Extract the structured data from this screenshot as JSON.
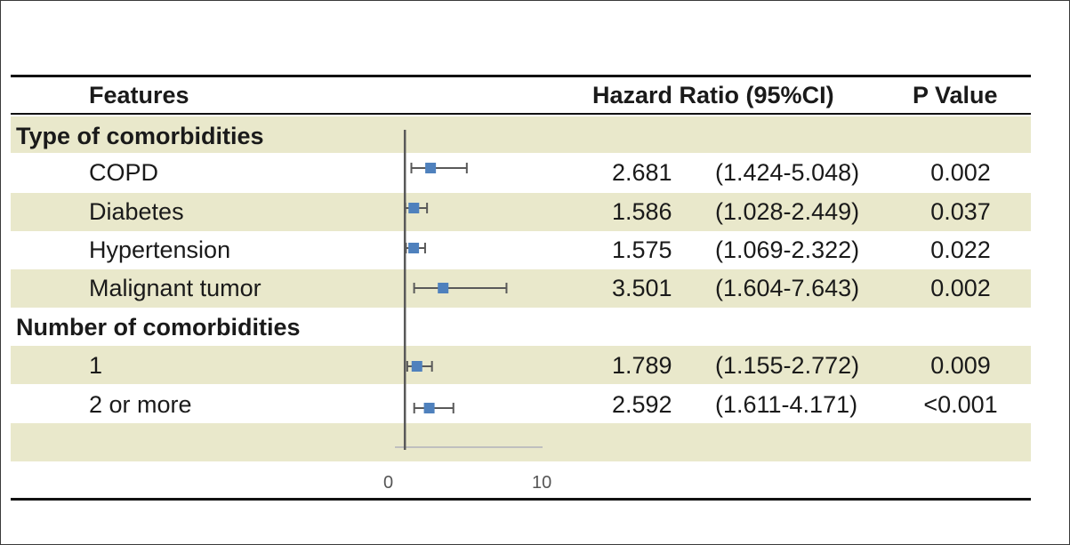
{
  "table": {
    "headers": {
      "features": "Features",
      "hazard_ratio": "Hazard Ratio (95%CI)",
      "p_value": "P Value"
    },
    "sections": [
      {
        "title": "Type of comorbidities",
        "rows": [
          {
            "label": "COPD",
            "hr": "2.681",
            "ci": "(1.424-5.048)",
            "p": "0.002"
          },
          {
            "label": "Diabetes",
            "hr": "1.586",
            "ci": "(1.028-2.449)",
            "p": "0.037"
          },
          {
            "label": "Hypertension",
            "hr": "1.575",
            "ci": "(1.069-2.322)",
            "p": "0.022"
          },
          {
            "label": "Malignant tumor",
            "hr": "3.501",
            "ci": "(1.604-7.643)",
            "p": "0.002"
          }
        ]
      },
      {
        "title": "Number of comorbidities",
        "rows": [
          {
            "label": "1",
            "hr": "1.789",
            "ci": "(1.155-2.772)",
            "p": "0.009"
          },
          {
            "label": "2 or more",
            "hr": "2.592",
            "ci": "(1.611-4.171)",
            "p": "<0.001"
          }
        ]
      }
    ]
  },
  "chart_data": {
    "type": "scatter",
    "title": "",
    "xlabel": "",
    "ylabel": "",
    "xlim": [
      0,
      10
    ],
    "x_ticks": [
      "0",
      "10"
    ],
    "reference_line": 1,
    "grid": false,
    "marker_color": "#4f81bd",
    "whisker_color": "#595959",
    "categories": [
      "COPD",
      "Diabetes",
      "Hypertension",
      "Malignant tumor",
      "1",
      "2 or more"
    ],
    "series": [
      {
        "points": [
          {
            "category": "COPD",
            "hr": 2.681,
            "lower": 1.424,
            "upper": 5.048
          },
          {
            "category": "Diabetes",
            "hr": 1.586,
            "lower": 1.028,
            "upper": 2.449
          },
          {
            "category": "Hypertension",
            "hr": 1.575,
            "lower": 1.069,
            "upper": 2.322
          },
          {
            "category": "Malignant tumor",
            "hr": 3.501,
            "lower": 1.604,
            "upper": 7.643
          },
          {
            "category": "1",
            "hr": 1.789,
            "lower": 1.155,
            "upper": 2.772
          },
          {
            "category": "2 or more",
            "hr": 2.592,
            "lower": 1.611,
            "upper": 4.171
          }
        ]
      }
    ]
  }
}
